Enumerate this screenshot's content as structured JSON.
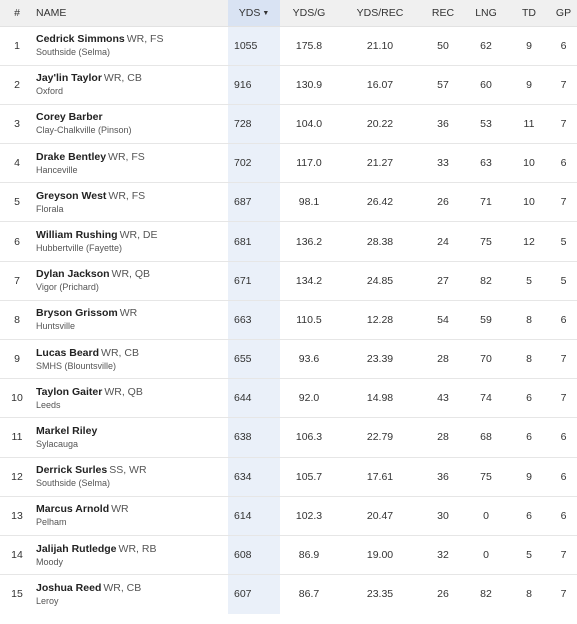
{
  "table": {
    "headers": {
      "rank": "#",
      "name": "NAME",
      "yds": "YDS",
      "ydsg": "YDS/G",
      "ydsrec": "YDS/REC",
      "rec": "REC",
      "lng": "LNG",
      "td": "TD",
      "gp": "GP"
    },
    "sort_indicator": "▼",
    "sort_icon": "caret-down-icon",
    "rows": [
      {
        "rank": "1",
        "name": "Cedrick Simmons",
        "pos": "WR, FS",
        "school": "Southside (Selma)",
        "yds": "1055",
        "ydsg": "175.8",
        "ydsrec": "21.10",
        "rec": "50",
        "lng": "62",
        "td": "9",
        "gp": "6"
      },
      {
        "rank": "2",
        "name": "Jay'lin Taylor",
        "pos": "WR, CB",
        "school": "Oxford",
        "yds": "916",
        "ydsg": "130.9",
        "ydsrec": "16.07",
        "rec": "57",
        "lng": "60",
        "td": "9",
        "gp": "7"
      },
      {
        "rank": "3",
        "name": "Corey Barber",
        "pos": "",
        "school": "Clay-Chalkville (Pinson)",
        "yds": "728",
        "ydsg": "104.0",
        "ydsrec": "20.22",
        "rec": "36",
        "lng": "53",
        "td": "11",
        "gp": "7"
      },
      {
        "rank": "4",
        "name": "Drake Bentley",
        "pos": "WR, FS",
        "school": "Hanceville",
        "yds": "702",
        "ydsg": "117.0",
        "ydsrec": "21.27",
        "rec": "33",
        "lng": "63",
        "td": "10",
        "gp": "6"
      },
      {
        "rank": "5",
        "name": "Greyson West",
        "pos": "WR, FS",
        "school": "Florala",
        "yds": "687",
        "ydsg": "98.1",
        "ydsrec": "26.42",
        "rec": "26",
        "lng": "71",
        "td": "10",
        "gp": "7"
      },
      {
        "rank": "6",
        "name": "William Rushing",
        "pos": "WR, DE",
        "school": "Hubbertville (Fayette)",
        "yds": "681",
        "ydsg": "136.2",
        "ydsrec": "28.38",
        "rec": "24",
        "lng": "75",
        "td": "12",
        "gp": "5"
      },
      {
        "rank": "7",
        "name": "Dylan Jackson",
        "pos": "WR, QB",
        "school": "Vigor (Prichard)",
        "yds": "671",
        "ydsg": "134.2",
        "ydsrec": "24.85",
        "rec": "27",
        "lng": "82",
        "td": "5",
        "gp": "5"
      },
      {
        "rank": "8",
        "name": "Bryson Grissom",
        "pos": "WR",
        "school": "Huntsville",
        "yds": "663",
        "ydsg": "110.5",
        "ydsrec": "12.28",
        "rec": "54",
        "lng": "59",
        "td": "8",
        "gp": "6"
      },
      {
        "rank": "9",
        "name": "Lucas Beard",
        "pos": "WR, CB",
        "school": "SMHS (Blountsville)",
        "yds": "655",
        "ydsg": "93.6",
        "ydsrec": "23.39",
        "rec": "28",
        "lng": "70",
        "td": "8",
        "gp": "7"
      },
      {
        "rank": "10",
        "name": "Taylon Gaiter",
        "pos": "WR, QB",
        "school": "Leeds",
        "yds": "644",
        "ydsg": "92.0",
        "ydsrec": "14.98",
        "rec": "43",
        "lng": "74",
        "td": "6",
        "gp": "7"
      },
      {
        "rank": "11",
        "name": "Markel Riley",
        "pos": "",
        "school": "Sylacauga",
        "yds": "638",
        "ydsg": "106.3",
        "ydsrec": "22.79",
        "rec": "28",
        "lng": "68",
        "td": "6",
        "gp": "6"
      },
      {
        "rank": "12",
        "name": "Derrick Surles",
        "pos": "SS, WR",
        "school": "Southside (Selma)",
        "yds": "634",
        "ydsg": "105.7",
        "ydsrec": "17.61",
        "rec": "36",
        "lng": "75",
        "td": "9",
        "gp": "6"
      },
      {
        "rank": "13",
        "name": "Marcus Arnold",
        "pos": "WR",
        "school": "Pelham",
        "yds": "614",
        "ydsg": "102.3",
        "ydsrec": "20.47",
        "rec": "30",
        "lng": "0",
        "td": "6",
        "gp": "6"
      },
      {
        "rank": "14",
        "name": "Jalijah Rutledge",
        "pos": "WR, RB",
        "school": "Moody",
        "yds": "608",
        "ydsg": "86.9",
        "ydsrec": "19.00",
        "rec": "32",
        "lng": "0",
        "td": "5",
        "gp": "7"
      },
      {
        "rank": "15",
        "name": "Joshua Reed",
        "pos": "WR, CB",
        "school": "Leroy",
        "yds": "607",
        "ydsg": "86.7",
        "ydsrec": "23.35",
        "rec": "26",
        "lng": "82",
        "td": "8",
        "gp": "7"
      }
    ]
  },
  "colors": {
    "header_bg": "#f0f0f0",
    "sorted_header_bg": "#d9e3f3",
    "sorted_column_bg": "#eaf0f9",
    "row_border": "#e6e6e6"
  }
}
